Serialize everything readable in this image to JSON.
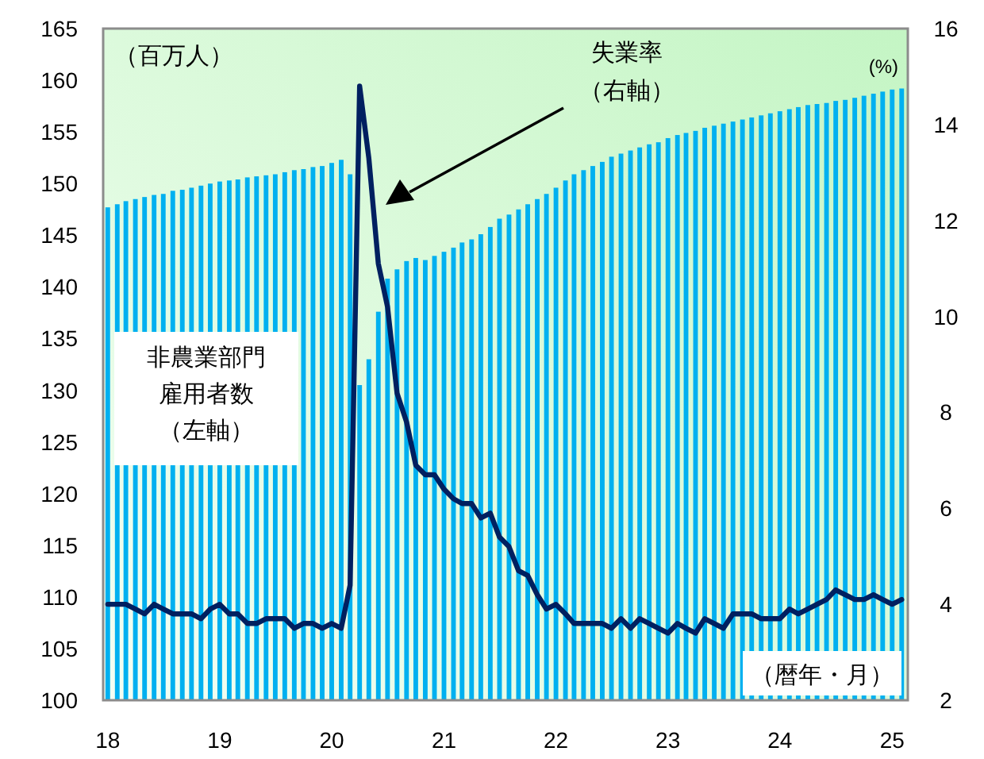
{
  "chart_data": {
    "type": "bar",
    "annotations": [
      "（百万人）",
      "(%)",
      "失業率",
      "（右軸）",
      "非農業部門",
      "雇用者数",
      "（左軸）",
      "（暦年・月）"
    ],
    "x": [
      "2018-01",
      "2018-02",
      "2018-03",
      "2018-04",
      "2018-05",
      "2018-06",
      "2018-07",
      "2018-08",
      "2018-09",
      "2018-10",
      "2018-11",
      "2018-12",
      "2019-01",
      "2019-02",
      "2019-03",
      "2019-04",
      "2019-05",
      "2019-06",
      "2019-07",
      "2019-08",
      "2019-09",
      "2019-10",
      "2019-11",
      "2019-12",
      "2020-01",
      "2020-02",
      "2020-03",
      "2020-04",
      "2020-05",
      "2020-06",
      "2020-07",
      "2020-08",
      "2020-09",
      "2020-10",
      "2020-11",
      "2020-12",
      "2021-01",
      "2021-02",
      "2021-03",
      "2021-04",
      "2021-05",
      "2021-06",
      "2021-07",
      "2021-08",
      "2021-09",
      "2021-10",
      "2021-11",
      "2021-12",
      "2022-01",
      "2022-02",
      "2022-03",
      "2022-04",
      "2022-05",
      "2022-06",
      "2022-07",
      "2022-08",
      "2022-09",
      "2022-10",
      "2022-11",
      "2022-12",
      "2023-01",
      "2023-02",
      "2023-03",
      "2023-04",
      "2023-05",
      "2023-06",
      "2023-07",
      "2023-08",
      "2023-09",
      "2023-10",
      "2023-11",
      "2023-12",
      "2024-01",
      "2024-02",
      "2024-03",
      "2024-04",
      "2024-05",
      "2024-06",
      "2024-07",
      "2024-08",
      "2024-09",
      "2024-10",
      "2024-11",
      "2024-12",
      "2025-01",
      "2025-02"
    ],
    "series": [
      {
        "color": "#00b0f0",
        "values": [
          147.7,
          148.0,
          148.3,
          148.5,
          148.7,
          148.9,
          149.0,
          149.3,
          149.4,
          149.6,
          149.8,
          150.0,
          150.2,
          150.3,
          150.4,
          150.6,
          150.7,
          150.8,
          150.9,
          151.1,
          151.3,
          151.4,
          151.6,
          151.7,
          152.0,
          152.3,
          150.9,
          130.5,
          133.0,
          137.6,
          140.8,
          141.7,
          142.5,
          142.8,
          142.6,
          143.0,
          143.4,
          143.8,
          144.3,
          144.6,
          145.1,
          145.8,
          146.6,
          147.0,
          147.5,
          148.0,
          148.5,
          149.0,
          149.6,
          150.3,
          150.9,
          151.3,
          151.7,
          152.1,
          152.6,
          152.9,
          153.2,
          153.5,
          153.8,
          154.0,
          154.4,
          154.7,
          154.9,
          155.1,
          155.4,
          155.6,
          155.8,
          156.0,
          156.2,
          156.4,
          156.6,
          156.8,
          157.0,
          157.2,
          157.4,
          157.6,
          157.7,
          157.8,
          158.0,
          158.1,
          158.3,
          158.5,
          158.7,
          158.9,
          159.1,
          159.2
        ]
      },
      {
        "type": "line",
        "axis": "y2",
        "color": "#002060",
        "values": [
          4.0,
          4.0,
          4.0,
          3.9,
          3.8,
          4.0,
          3.9,
          3.8,
          3.8,
          3.8,
          3.7,
          3.9,
          4.0,
          3.8,
          3.8,
          3.6,
          3.6,
          3.7,
          3.7,
          3.7,
          3.5,
          3.6,
          3.6,
          3.5,
          3.6,
          3.5,
          4.4,
          14.8,
          13.3,
          11.1,
          10.2,
          8.4,
          7.8,
          6.9,
          6.7,
          6.7,
          6.4,
          6.2,
          6.1,
          6.1,
          5.8,
          5.9,
          5.4,
          5.2,
          4.7,
          4.6,
          4.2,
          3.9,
          4.0,
          3.8,
          3.6,
          3.6,
          3.6,
          3.6,
          3.5,
          3.7,
          3.5,
          3.7,
          3.6,
          3.5,
          3.4,
          3.6,
          3.5,
          3.4,
          3.7,
          3.6,
          3.5,
          3.8,
          3.8,
          3.8,
          3.7,
          3.7,
          3.7,
          3.9,
          3.8,
          3.9,
          4.0,
          4.1,
          4.3,
          4.2,
          4.1,
          4.1,
          4.2,
          4.1,
          4.0,
          4.1
        ]
      }
    ],
    "xlim": [
      "2017-12-17",
      "2025-02-21"
    ],
    "xticks": [
      {
        "value": "2018-01",
        "label": "18"
      },
      {
        "value": "2019-01",
        "label": "19"
      },
      {
        "value": "2020-01",
        "label": "20"
      },
      {
        "value": "2021-01",
        "label": "21"
      },
      {
        "value": "2022-01",
        "label": "22"
      },
      {
        "value": "2023-01",
        "label": "23"
      },
      {
        "value": "2024-01",
        "label": "24"
      },
      {
        "value": "2025-01",
        "label": "25"
      }
    ],
    "ylim": [
      100,
      165
    ],
    "yticks": [
      100,
      105,
      110,
      115,
      120,
      125,
      130,
      135,
      140,
      145,
      150,
      155,
      160,
      165
    ],
    "y2lim": [
      2,
      16
    ],
    "y2ticks": [
      2,
      4,
      6,
      8,
      10,
      12,
      14,
      16
    ]
  }
}
